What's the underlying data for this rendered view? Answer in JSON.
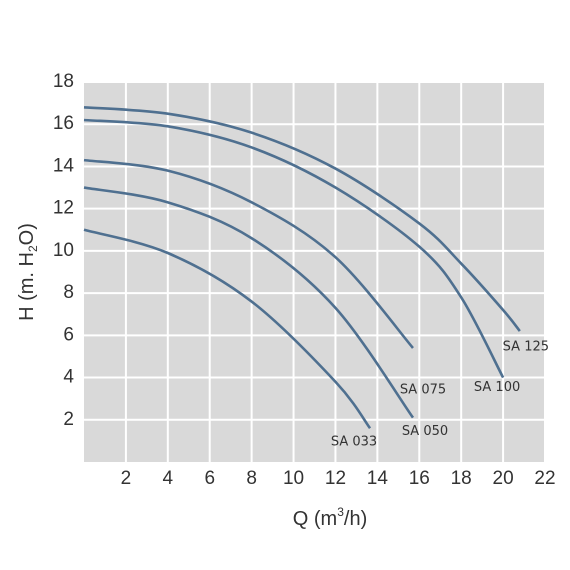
{
  "chart_data": {
    "type": "line",
    "xlabel": [
      "Q (m",
      "3",
      "/h)"
    ],
    "ylabel": [
      "H (m. H",
      "2",
      "O)"
    ],
    "xlim": [
      0,
      22
    ],
    "ylim": [
      0,
      18
    ],
    "xticks": [
      2,
      4,
      6,
      8,
      10,
      12,
      14,
      16,
      18,
      20,
      22
    ],
    "yticks": [
      2,
      4,
      6,
      8,
      10,
      12,
      14,
      16,
      18
    ],
    "grid": true,
    "series": [
      {
        "name": "SA 125",
        "color": "#4f7090",
        "x": [
          0,
          4,
          8,
          12,
          16,
          18,
          20,
          20.8
        ],
        "values": [
          16.8,
          16.5,
          15.6,
          13.9,
          11.3,
          9.4,
          7.2,
          6.2
        ]
      },
      {
        "name": "SA 100",
        "color": "#4f7090",
        "x": [
          0,
          4,
          8,
          12,
          16,
          18,
          20
        ],
        "values": [
          16.2,
          15.9,
          14.9,
          13.0,
          10.2,
          7.8,
          4.0
        ]
      },
      {
        "name": "SA 075",
        "color": "#4f7090",
        "x": [
          0,
          4,
          8,
          12,
          15.7
        ],
        "values": [
          14.3,
          13.8,
          12.3,
          9.7,
          5.4
        ]
      },
      {
        "name": "SA 050",
        "color": "#4f7090",
        "x": [
          0,
          4,
          8,
          12,
          15.7
        ],
        "values": [
          13.0,
          12.3,
          10.6,
          7.3,
          2.1
        ]
      },
      {
        "name": "SA 033",
        "color": "#4f7090",
        "x": [
          0,
          4,
          8,
          12,
          13.65
        ],
        "values": [
          11.0,
          9.9,
          7.6,
          3.8,
          1.6
        ]
      }
    ]
  }
}
